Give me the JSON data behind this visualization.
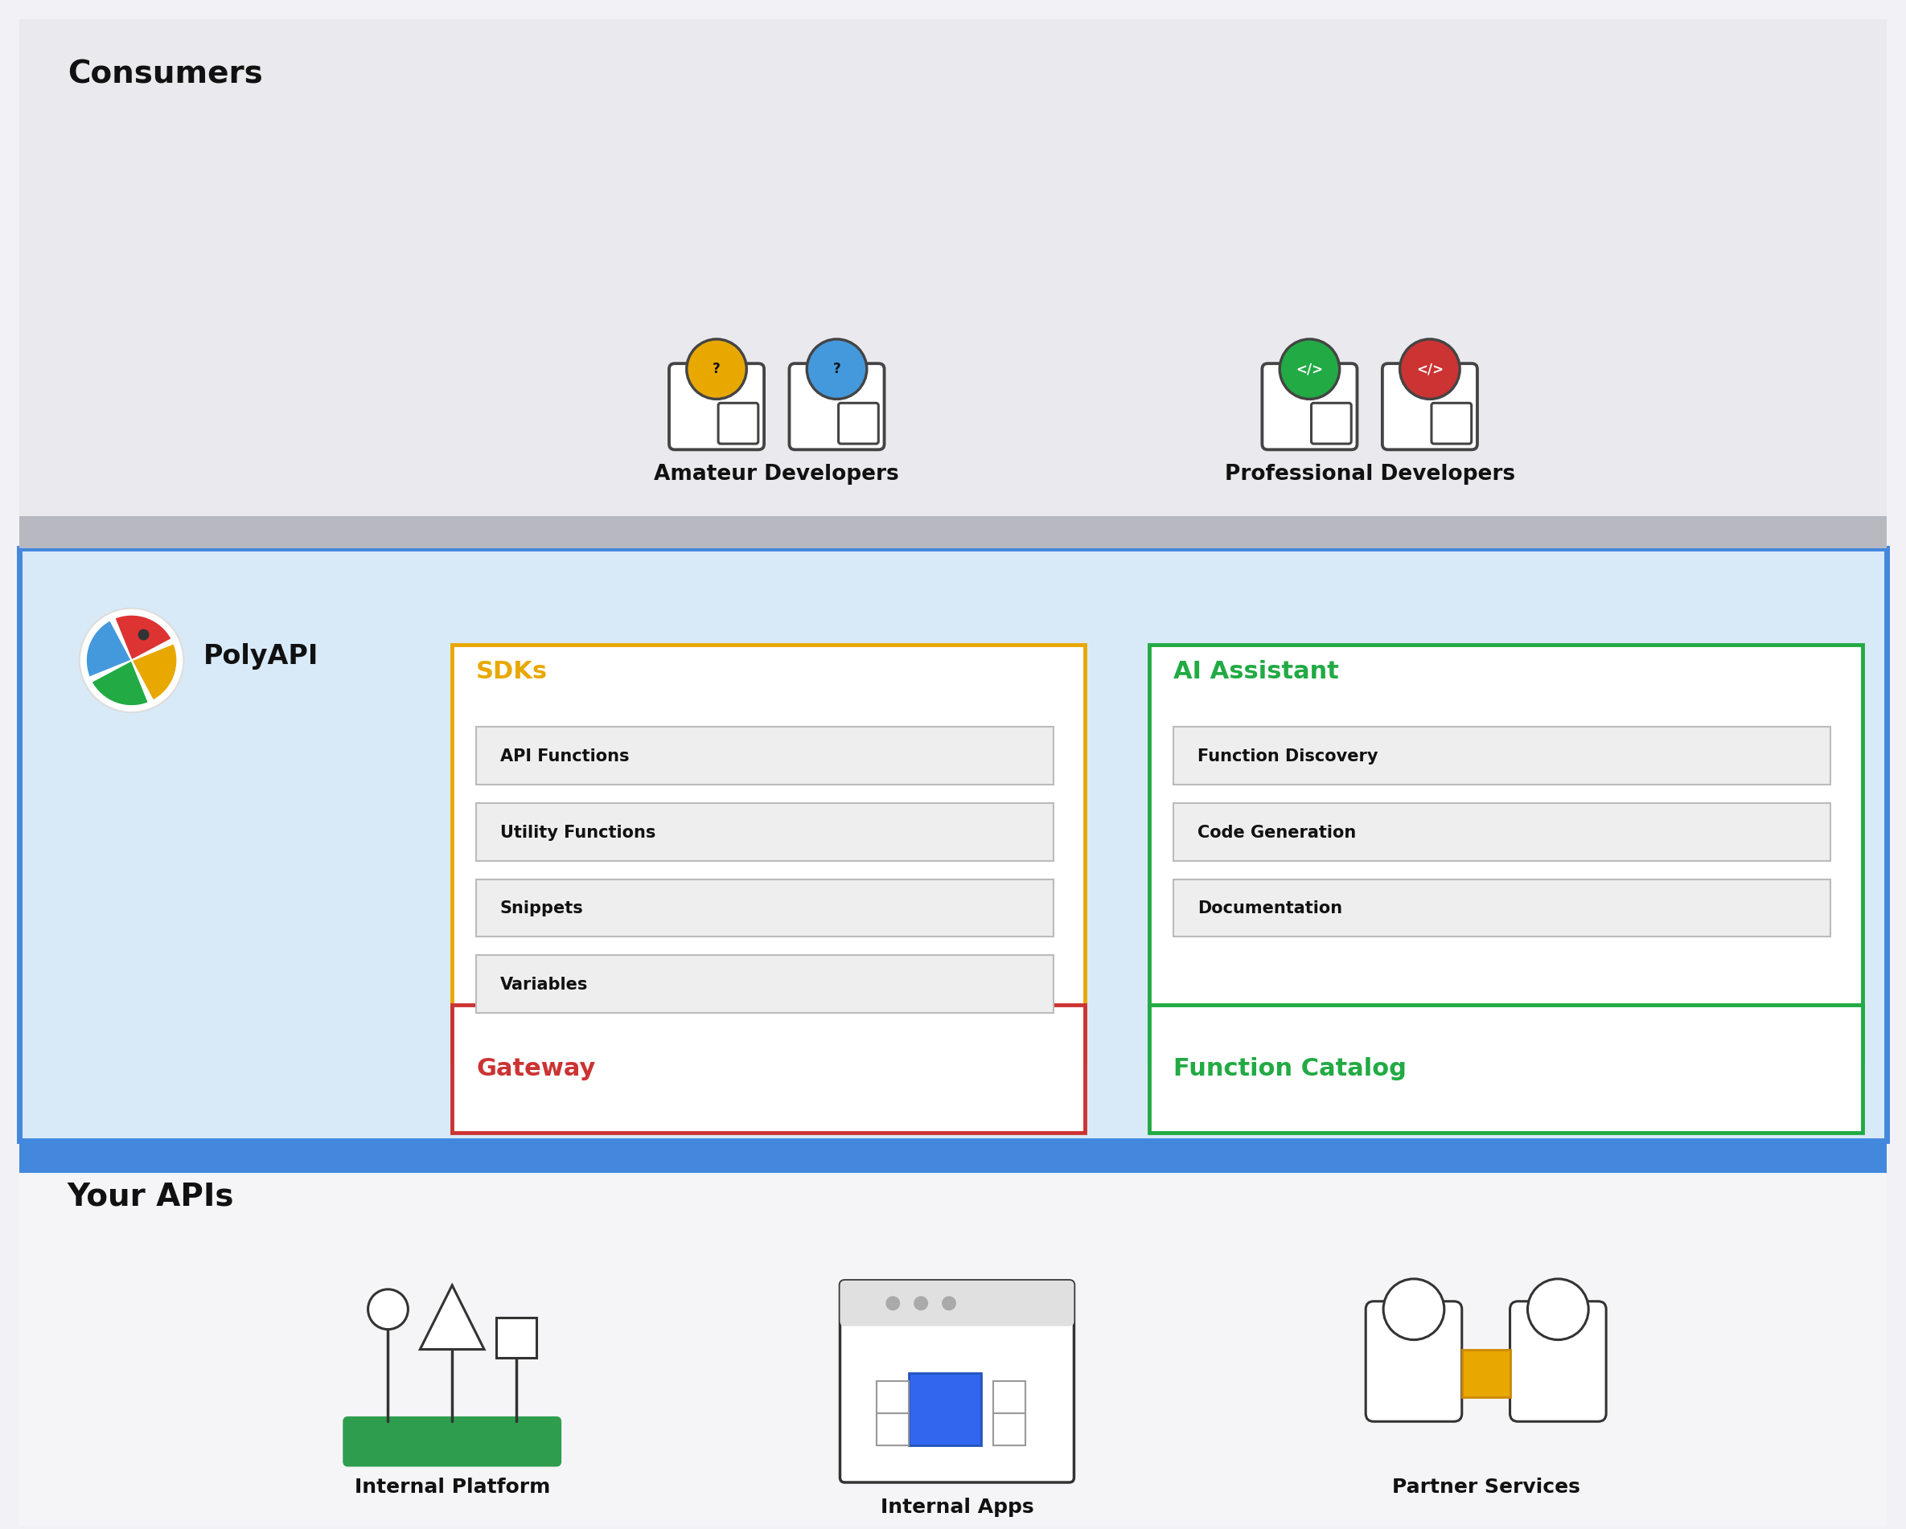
{
  "fig_width": 23.7,
  "fig_height": 19.02,
  "bg_color": "#f2f2f6",
  "consumers_bg": "#eaeaee",
  "polyapi_bg": "#d8eaf8",
  "polyapi_border": "#4488dd",
  "your_apis_bg": "#f5f5f7",
  "section_separator": "#c0c0c8",
  "consumers_label": "Consumers",
  "amateur_label": "Amateur Developers",
  "professional_label": "Professional Developers",
  "polyapi_label": "PolyAPI",
  "sdk_label": "SDKs",
  "sdk_border": "#e8a800",
  "sdk_bg": "#ffffff",
  "sdk_items": [
    "API Functions",
    "Utility Functions",
    "Snippets",
    "Variables"
  ],
  "ai_label": "AI Assistant",
  "ai_border": "#22aa44",
  "ai_bg": "#ffffff",
  "ai_items": [
    "Function Discovery",
    "Code Generation",
    "Documentation"
  ],
  "gateway_label": "Gateway",
  "gateway_border": "#cc3333",
  "gateway_bg": "#ffffff",
  "catalog_label": "Function Catalog",
  "catalog_border": "#22aa44",
  "catalog_bg": "#ffffff",
  "your_apis_label": "Your APIs",
  "platform_label": "Internal Platform",
  "apps_label": "Internal Apps",
  "partner_label": "Partner Services",
  "item_bg": "#eeeeee",
  "item_border": "#bbbbbb",
  "amateur_icon_color1": "#e8a800",
  "amateur_icon_color2": "#4499dd",
  "pro_icon_color1": "#22aa44",
  "pro_icon_color2": "#cc3333",
  "icon_edge": "#444444",
  "platform_green": "#2e9e4e"
}
